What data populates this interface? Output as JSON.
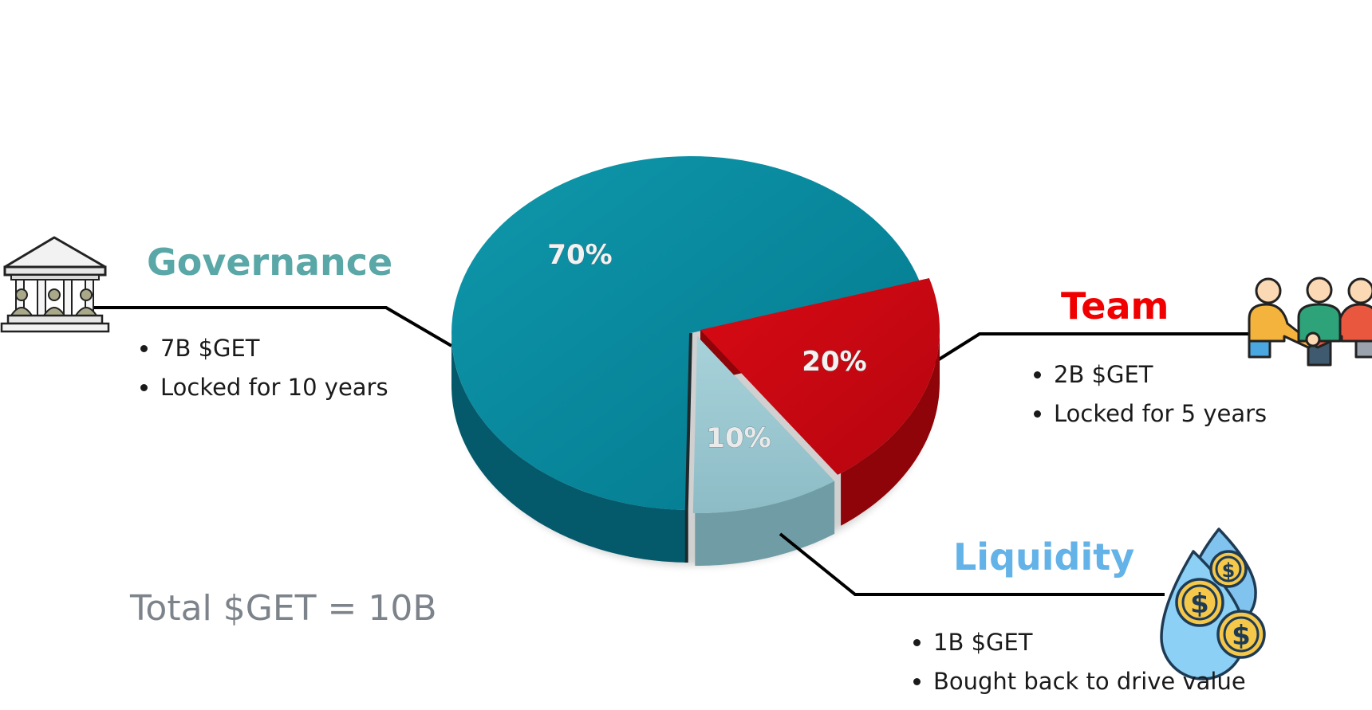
{
  "chart_data": {
    "type": "pie",
    "title": "",
    "slices": [
      {
        "label": "Governance",
        "value": 70,
        "value_label": "70%",
        "color": "#0a8fa3",
        "bullets": [
          "7B $GET",
          "Locked for 10 years"
        ],
        "label_color": "#5aa7a8",
        "icon": "bank-icon"
      },
      {
        "label": "Team",
        "value": 20,
        "value_label": "20%",
        "color": "#cf0a14",
        "bullets": [
          "2B $GET",
          "Locked for 5 years"
        ],
        "label_color": "#f00000",
        "icon": "team-icon"
      },
      {
        "label": "Liquidity",
        "value": 10,
        "value_label": "10%",
        "color": "#9dc9d3",
        "bullets": [
          "1B $GET",
          "Bought back to drive value"
        ],
        "label_color": "#63b2e8",
        "icon": "coins-drop-icon"
      }
    ]
  },
  "total_text": "Total $GET = 10B"
}
